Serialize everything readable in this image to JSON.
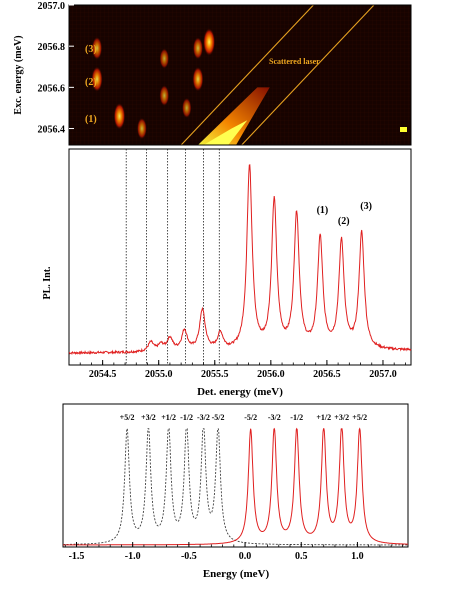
{
  "chart_data": [
    {
      "type": "heatmap",
      "title": "",
      "ylabel": "Exc. energy (meV)",
      "xlim": [
        2054.2,
        2057.25
      ],
      "ylim": [
        2056.32,
        2057.0
      ],
      "y_ticks": [
        "2056.4",
        "2056.6",
        "2056.8",
        "2057.0"
      ],
      "y_tick_values": [
        2056.4,
        2056.6,
        2056.8,
        2057.0
      ],
      "row_labels": [
        {
          "label": "(3)",
          "y": 2056.79
        },
        {
          "label": "(2)",
          "y": 2056.63
        },
        {
          "label": "(1)",
          "y": 2056.45
        }
      ],
      "annotation": "Scattered laser",
      "spots": [
        {
          "x": 2054.45,
          "y": 2056.79,
          "intensity": 0.55
        },
        {
          "x": 2054.45,
          "y": 2056.64,
          "intensity": 0.75
        },
        {
          "x": 2054.65,
          "y": 2056.46,
          "intensity": 0.85
        },
        {
          "x": 2054.85,
          "y": 2056.4,
          "intensity": 0.45
        },
        {
          "x": 2055.05,
          "y": 2056.56,
          "intensity": 0.4
        },
        {
          "x": 2055.05,
          "y": 2056.74,
          "intensity": 0.35
        },
        {
          "x": 2055.25,
          "y": 2056.5,
          "intensity": 0.35
        },
        {
          "x": 2055.35,
          "y": 2056.64,
          "intensity": 0.7
        },
        {
          "x": 2055.35,
          "y": 2056.79,
          "intensity": 0.5
        },
        {
          "x": 2055.45,
          "y": 2056.82,
          "intensity": 0.95
        }
      ],
      "laser_lines": [
        {
          "x0": 2055.2,
          "y0": 2056.32,
          "x1": 2056.38,
          "y1": 2057.0
        },
        {
          "x0": 2055.74,
          "y0": 2056.32,
          "x1": 2056.92,
          "y1": 2057.0
        }
      ],
      "colors": {
        "background": "#170300",
        "spot_low": "#a01000",
        "spot_high": "#ffff40",
        "laser_line": "#e5a020",
        "label": "#f0a820"
      }
    },
    {
      "type": "line",
      "xlabel": "Det. energy (meV)",
      "ylabel": "PL. Int.",
      "xlim": [
        2054.2,
        2057.25
      ],
      "ylim": [
        0,
        1.05
      ],
      "x_ticks": [
        2054.5,
        2055.0,
        2055.5,
        2056.0,
        2056.5,
        2057.0
      ],
      "x_tick_labels": [
        "2054.5",
        "2055.0",
        "2055.5",
        "2056.0",
        "2056.5",
        "2057.0"
      ],
      "color": "#e02020",
      "baseline": 0.035,
      "peaks": [
        {
          "x": 2054.93,
          "height": 0.05,
          "width": 0.03
        },
        {
          "x": 2055.02,
          "height": 0.035,
          "width": 0.03
        },
        {
          "x": 2055.1,
          "height": 0.07,
          "width": 0.03
        },
        {
          "x": 2055.23,
          "height": 0.11,
          "width": 0.03
        },
        {
          "x": 2055.39,
          "height": 0.22,
          "width": 0.03
        },
        {
          "x": 2055.55,
          "height": 0.09,
          "width": 0.03
        },
        {
          "x": 2055.81,
          "height": 1.0,
          "width": 0.028
        },
        {
          "x": 2056.03,
          "height": 0.8,
          "width": 0.028
        },
        {
          "x": 2056.23,
          "height": 0.73,
          "width": 0.028
        },
        {
          "x": 2056.44,
          "height": 0.6,
          "width": 0.028
        },
        {
          "x": 2056.63,
          "height": 0.58,
          "width": 0.028
        },
        {
          "x": 2056.81,
          "height": 0.63,
          "width": 0.028
        }
      ],
      "dotted_lines_x": [
        2054.71,
        2054.89,
        2055.08,
        2055.24,
        2055.4,
        2055.54
      ],
      "peak_labels": [
        {
          "label": "(1)",
          "x": 2056.46,
          "y": 0.78
        },
        {
          "label": "(2)",
          "x": 2056.65,
          "y": 0.72
        },
        {
          "label": "(3)",
          "x": 2056.85,
          "y": 0.8
        }
      ]
    },
    {
      "type": "line",
      "xlabel": "Energy (meV)",
      "xlim": [
        -1.62,
        1.45
      ],
      "ylim": [
        0,
        1.2
      ],
      "x_ticks": [
        -1.5,
        -1.0,
        -0.5,
        0.0,
        0.5,
        1.0
      ],
      "x_tick_labels": [
        "-1.5",
        "-1.0",
        "-0.5",
        "0.0",
        "0.5",
        "1.0"
      ],
      "series": [
        {
          "name": "",
          "color": "#404040",
          "style": "dashed",
          "peaks": [
            -1.05,
            -0.86,
            -0.68,
            -0.52,
            -0.37,
            -0.24
          ],
          "labels": [
            "+5/2",
            "+3/2",
            "+1/2",
            "-1/2",
            "-3/2",
            "-5/2"
          ]
        },
        {
          "name": "",
          "color": "#e02020",
          "style": "solid",
          "peaks": [
            0.05,
            0.26,
            0.46,
            0.7,
            0.86,
            1.02
          ],
          "labels": [
            "-5/2",
            "-3/2",
            "-1/2",
            "+1/2",
            "+3/2",
            "+5/2"
          ]
        }
      ],
      "peak_height": 1.0,
      "peak_width": 0.025
    }
  ]
}
